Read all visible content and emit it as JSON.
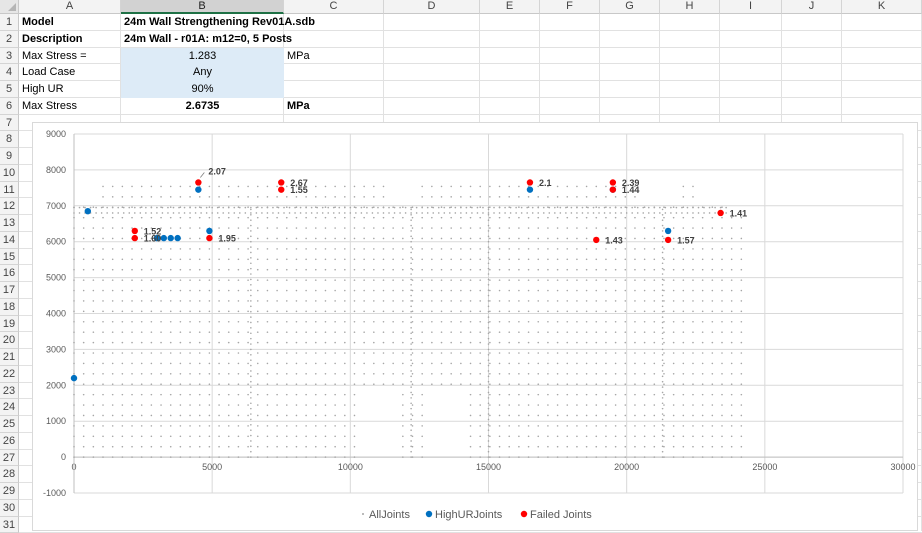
{
  "columns": [
    "A",
    "B",
    "C",
    "D",
    "E",
    "F",
    "G",
    "H",
    "I",
    "J",
    "K"
  ],
  "selected_column": "B",
  "rows": [
    "1",
    "2",
    "3",
    "4",
    "5",
    "6",
    "7",
    "8",
    "9",
    "10",
    "11",
    "12",
    "13",
    "14",
    "15",
    "16",
    "17",
    "18",
    "19",
    "20",
    "21",
    "22",
    "23",
    "24",
    "25",
    "26",
    "27",
    "28",
    "29",
    "30",
    "31"
  ],
  "cells": {
    "a1": "Model",
    "b1": "24m Wall Strengthening Rev01A.sdb",
    "a2": "Description",
    "b2": "24m Wall - r01A: m12=0, 5 Posts",
    "a3": "Max Stress =",
    "b3": "1.283",
    "c3": "MPa",
    "a4": "Load Case",
    "b4": "Any",
    "a5": "High UR",
    "b5": "90%",
    "a6": "Max Stress",
    "b6": "2.6735",
    "c6": "MPa"
  },
  "chart_data": {
    "type": "scatter",
    "xlim": [
      0,
      30000
    ],
    "ylim": [
      -1000,
      9000
    ],
    "x_ticks": [
      "0",
      "5000",
      "10000",
      "15000",
      "20000",
      "25000",
      "30000"
    ],
    "y_ticks": [
      "-1000",
      "0",
      "1000",
      "2000",
      "3000",
      "4000",
      "5000",
      "6000",
      "7000",
      "8000",
      "9000"
    ],
    "grid": true,
    "legend_position": "bottom",
    "series": [
      {
        "name": "AllJoints",
        "color": "#a6a6a6",
        "marker": "dot"
      },
      {
        "name": "HighURJoints",
        "color": "#0070c0",
        "marker": "circle"
      },
      {
        "name": "Failed Joints",
        "color": "#ff0000",
        "marker": "circle"
      }
    ],
    "high_ur_points": [
      [
        0,
        2200
      ],
      [
        500,
        6850
      ],
      [
        3000,
        6100
      ],
      [
        3250,
        6100
      ],
      [
        3500,
        6100
      ],
      [
        3750,
        6100
      ],
      [
        4500,
        7450
      ],
      [
        4900,
        6300
      ],
      [
        16500,
        7450
      ],
      [
        19500,
        7450
      ],
      [
        21500,
        6300
      ]
    ],
    "failed_points": [
      {
        "x": 2200,
        "y": 6300,
        "label": "1.52"
      },
      {
        "x": 2200,
        "y": 6100,
        "label": "1.60"
      },
      {
        "x": 4500,
        "y": 7650,
        "label": "2.07"
      },
      {
        "x": 4900,
        "y": 6100,
        "label": "1.95"
      },
      {
        "x": 7500,
        "y": 7650,
        "label": "2.67"
      },
      {
        "x": 7500,
        "y": 7450,
        "label": "1.55"
      },
      {
        "x": 16500,
        "y": 7650,
        "label": "2.1"
      },
      {
        "x": 19500,
        "y": 7650,
        "label": "2.39"
      },
      {
        "x": 19500,
        "y": 7450,
        "label": "1.44"
      },
      {
        "x": 18900,
        "y": 6050,
        "label": "1.43"
      },
      {
        "x": 21500,
        "y": 6050,
        "label": "1.57"
      },
      {
        "x": 23400,
        "y": 6800,
        "label": "1.41"
      }
    ]
  }
}
